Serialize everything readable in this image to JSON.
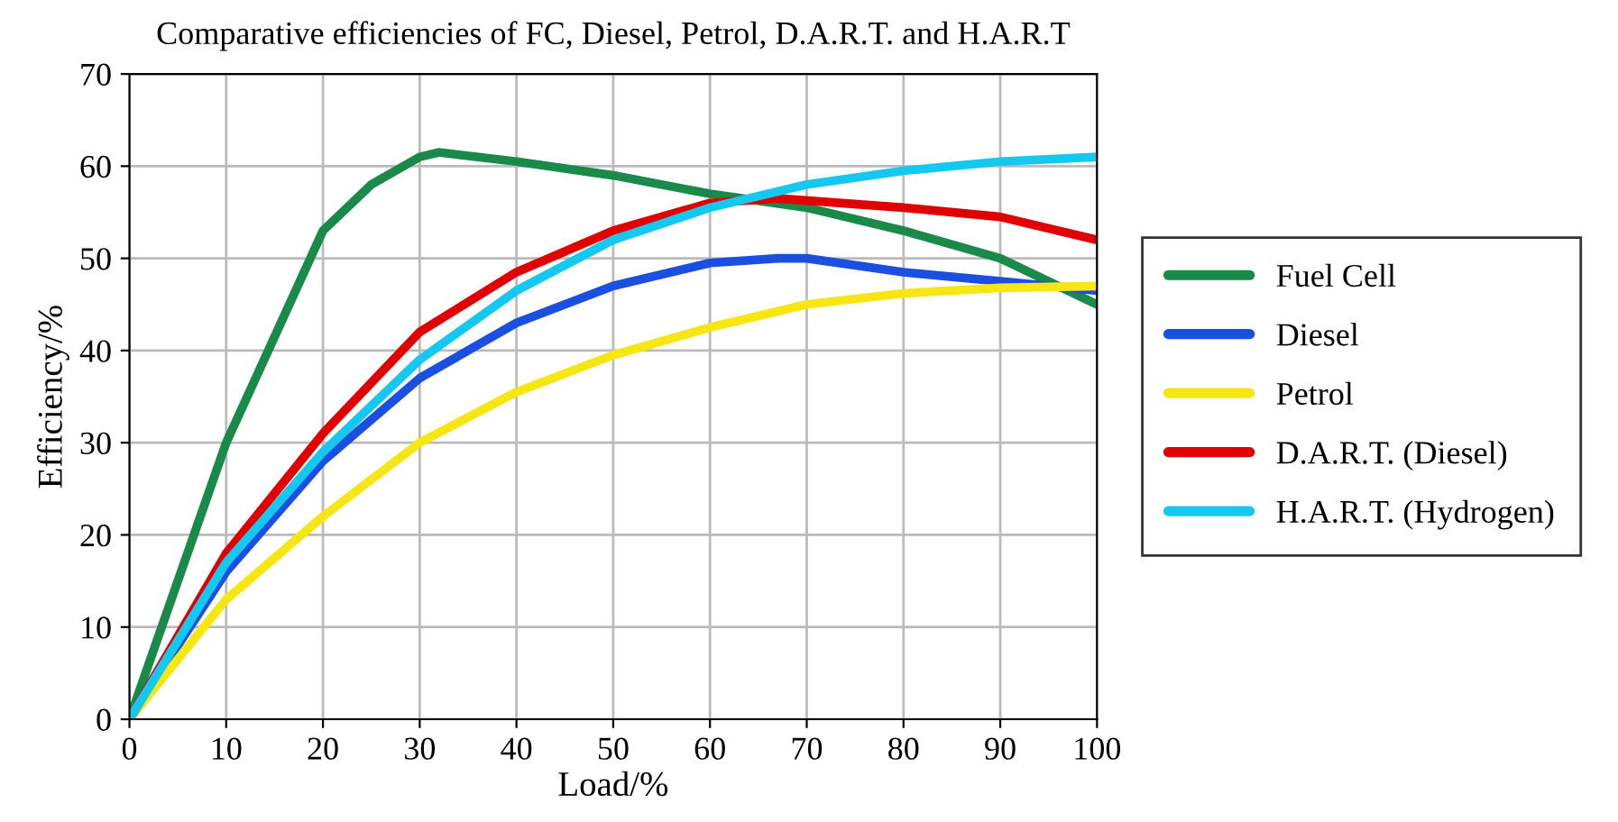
{
  "chart_data": {
    "type": "line",
    "title": "Comparative efficiencies of FC, Diesel, Petrol, D.A.R.T. and H.A.R.T",
    "xlabel": "Load/%",
    "ylabel": "Efficiency/%",
    "x": [
      0,
      10,
      20,
      25,
      30,
      32,
      40,
      50,
      60,
      67,
      70,
      80,
      90,
      100
    ],
    "series": [
      {
        "name": "Fuel Cell",
        "color": "#1a8a4a",
        "values": [
          0,
          30,
          53,
          58,
          61,
          61.5,
          60.5,
          59,
          57,
          null,
          55.5,
          53,
          50,
          45
        ]
      },
      {
        "name": "Diesel",
        "color": "#1a4fe0",
        "values": [
          0,
          16,
          28,
          null,
          37,
          null,
          43,
          47,
          49.5,
          50,
          50,
          48.5,
          47.5,
          46.5
        ]
      },
      {
        "name": "Petrol",
        "color": "#f5e614",
        "values": [
          0,
          13,
          22,
          null,
          30,
          null,
          35.5,
          39.5,
          42.5,
          null,
          45,
          46.2,
          46.8,
          47
        ]
      },
      {
        "name": "D.A.R.T. (Diesel)",
        "color": "#e00000",
        "values": [
          0,
          18,
          31,
          null,
          42,
          null,
          48.5,
          53,
          56,
          56.5,
          null,
          55.5,
          54.5,
          52
        ]
      },
      {
        "name": "H.A.R.T. (Hydrogen)",
        "color": "#14c8f0",
        "values": [
          0,
          17,
          29,
          null,
          39,
          null,
          46.5,
          52,
          55.5,
          null,
          58,
          59.5,
          60.5,
          61
        ]
      }
    ],
    "xlim": [
      0,
      100
    ],
    "ylim": [
      0,
      70
    ],
    "xticks": [
      0,
      10,
      20,
      30,
      40,
      50,
      60,
      70,
      80,
      90,
      100
    ],
    "yticks": [
      0,
      10,
      20,
      30,
      40,
      50,
      60,
      70
    ],
    "grid": true,
    "legend": "right",
    "marker": "none",
    "line_style": "solid"
  }
}
